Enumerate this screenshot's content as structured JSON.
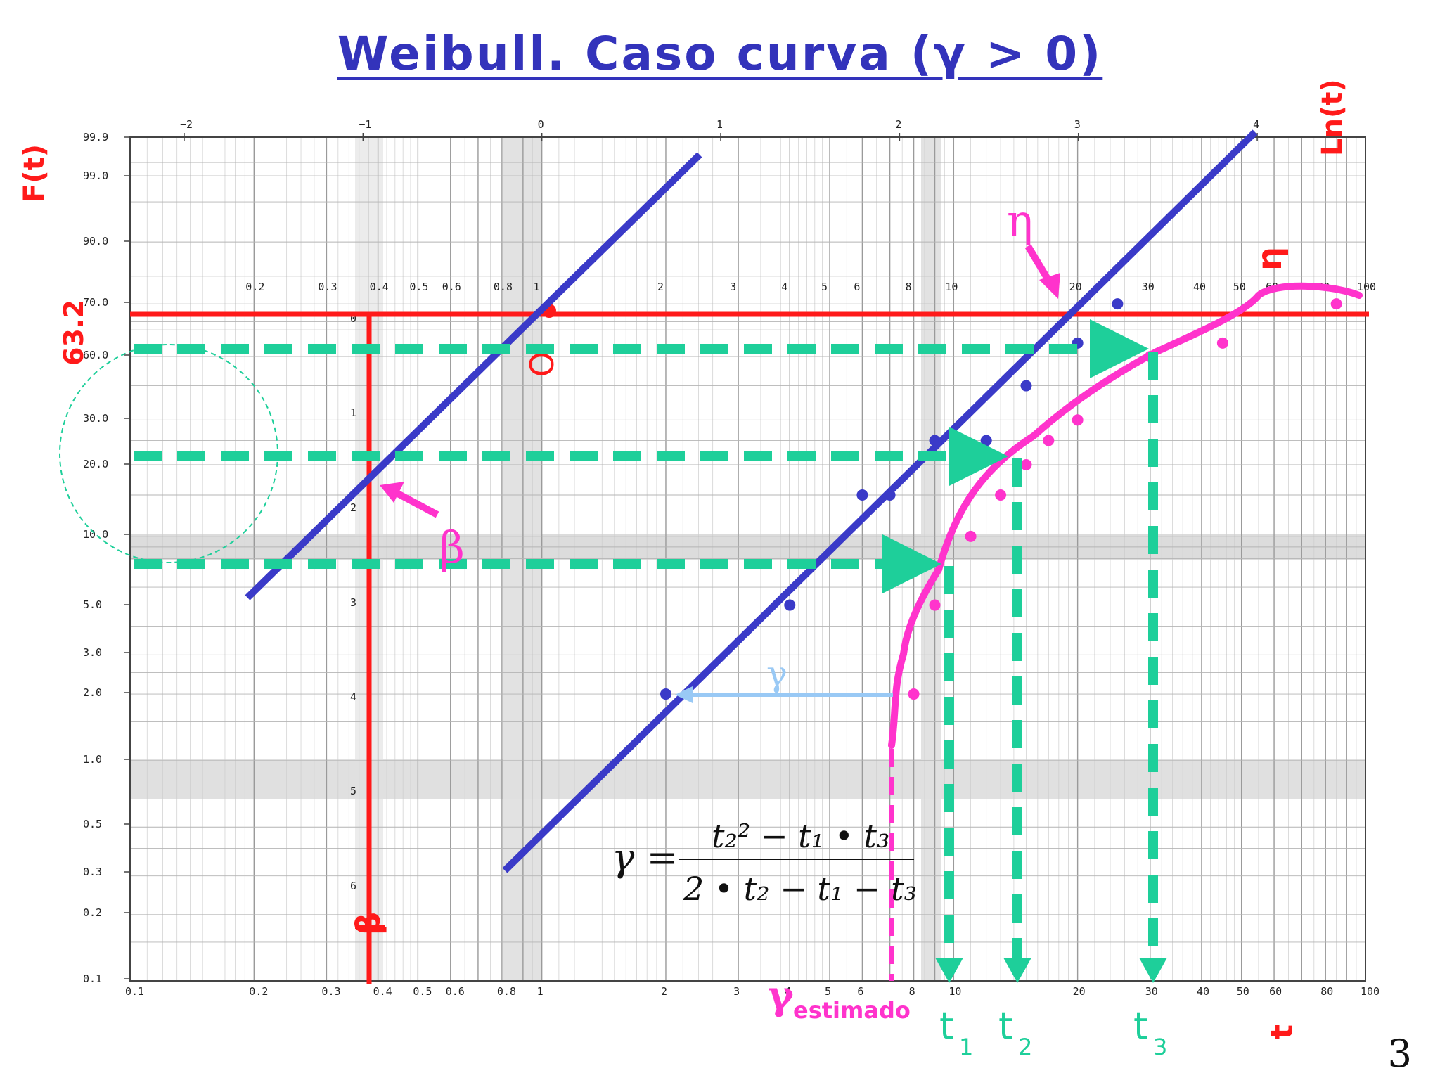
{
  "title": "Weibull. Caso curva (γ > 0)",
  "slide_number": "3",
  "labels": {
    "y_axis": "F(t)",
    "top_axis": "Ln(t)",
    "x_axis": "t",
    "ref_632": "63.2",
    "origin": "O",
    "beta_arrow": "β",
    "beta_scale": "β",
    "eta_arrow": "η",
    "eta_scale": "η",
    "gamma": "γ",
    "gamma_estimado": "γ",
    "gamma_estimado_sub": "estimado",
    "t1": "t",
    "t1_sub": "1",
    "t2": "t",
    "t2_sub": "2",
    "t3": "t",
    "t3_sub": "3"
  },
  "formula": {
    "lhs": "γ =",
    "numerator": "t₂² − t₁ • t₃",
    "denominator": "2 • t₂ − t₁ − t₃"
  },
  "colors": {
    "title": "#3333bb",
    "red": "#ff1a1a",
    "blue_line": "#3a3ac8",
    "magenta": "#ff33cc",
    "teal": "#1ecf9a",
    "light_blue": "#99c9f5"
  },
  "axes": {
    "f_ticks": [
      "99.9",
      "99.0",
      "90.0",
      "70.0",
      "60.0",
      "30.0",
      "20.0",
      "10.0",
      "5.0",
      "3.0",
      "2.0",
      "1.0",
      "0.5",
      "0.3",
      "0.2",
      "0.1"
    ],
    "t_bottom_ticks": [
      "0.1",
      "0.2",
      "0.3",
      "0.4",
      "0.5",
      "0.6",
      "0.8",
      "1",
      "2",
      "3",
      "4",
      "5",
      "6",
      "8",
      "10",
      "20",
      "30",
      "40",
      "50",
      "60",
      "80",
      "100"
    ],
    "t_mid_ticks": [
      "0.2",
      "0.3",
      "0.4",
      "0.5",
      "0.6",
      "0.8",
      "1",
      "2",
      "3",
      "4",
      "5",
      "6",
      "8",
      "10",
      "20",
      "30",
      "40",
      "50",
      "60",
      "80",
      "100"
    ],
    "ln_ticks": [
      "−2",
      "−1",
      "0",
      "1",
      "2",
      "3",
      "4"
    ],
    "beta_ticks": [
      "0",
      "1",
      "2",
      "3",
      "4",
      "5",
      "6"
    ],
    "t_log_range": [
      0.1,
      100
    ],
    "scale": "log"
  },
  "chart_data": {
    "type": "scatter",
    "series": [
      {
        "points": [
          [
            2,
            2
          ],
          [
            4,
            5
          ],
          [
            6,
            15
          ],
          [
            7,
            15
          ],
          [
            9,
            25
          ],
          [
            12,
            25
          ],
          [
            15,
            40
          ],
          [
            20,
            55
          ],
          [
            25,
            70
          ]
        ]
      },
      {
        "points": [
          [
            8,
            2
          ],
          [
            9,
            5
          ],
          [
            11,
            10
          ],
          [
            13,
            15
          ],
          [
            15,
            20
          ],
          [
            17,
            25
          ],
          [
            20,
            30
          ],
          [
            30,
            50
          ],
          [
            45,
            55
          ],
          [
            85,
            70
          ]
        ]
      }
    ]
  }
}
